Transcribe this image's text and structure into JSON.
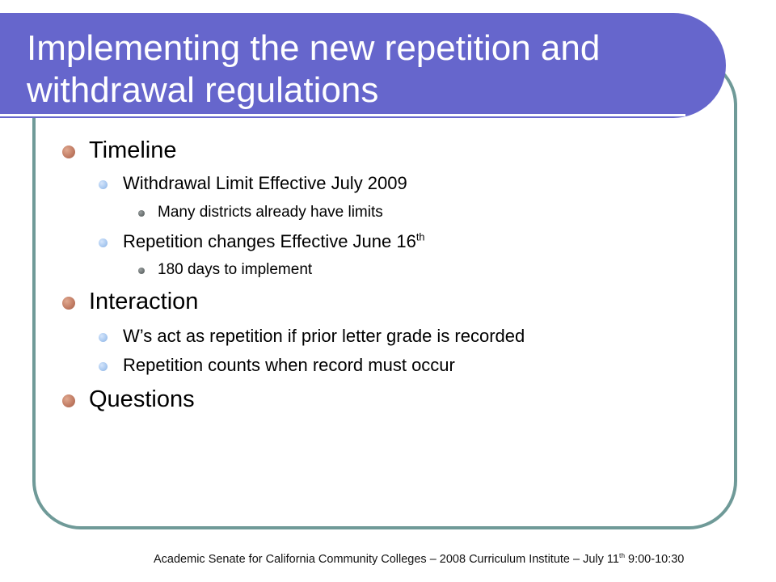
{
  "slide": {
    "title": "Implementing the new repetition and withdrawal regulations",
    "bullets": {
      "timeline": "Timeline",
      "withdrawal_limit": "Withdrawal Limit Effective July 2009",
      "many_districts": "Many districts already have limits",
      "repetition_changes": "Repetition changes Effective June 16",
      "repetition_changes_sup": "th",
      "days_180": "180 days to implement",
      "interaction": "Interaction",
      "ws_act": "W’s act as repetition if prior letter grade is recorded",
      "repetition_counts": "Repetition counts when record must occur",
      "questions": "Questions"
    },
    "footer": {
      "text_before": "Academic Senate for California Community Colleges – 2008 Curriculum Institute – July 11",
      "sup": "th",
      "text_after": " 9:00-10:30"
    }
  },
  "colors": {
    "title_bar": "#6666cc",
    "frame_border": "#6f9a98",
    "bullet_level1": "#c07a62",
    "bullet_level2": "#a8c8f0",
    "bullet_level3": "#6a7070"
  }
}
